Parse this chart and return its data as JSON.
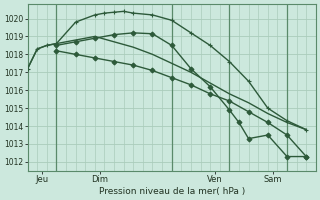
{
  "background_color": "#cce8dd",
  "grid_color": "#aaccbb",
  "line_color": "#2d5a3a",
  "title": "Pression niveau de la mer( hPa )",
  "ylabel_ticks": [
    1012,
    1013,
    1014,
    1015,
    1016,
    1017,
    1018,
    1019,
    1020
  ],
  "ylim": [
    1011.5,
    1020.8
  ],
  "xlim": [
    0,
    30
  ],
  "day_ticks": [
    {
      "x": 1.5,
      "label": "Jeu"
    },
    {
      "x": 7.5,
      "label": "Dim"
    },
    {
      "x": 19.5,
      "label": "Ven"
    },
    {
      "x": 25.5,
      "label": "Sam"
    }
  ],
  "day_lines": [
    3,
    15,
    21,
    27
  ],
  "series": [
    {
      "x": [
        0,
        1,
        2,
        3,
        5,
        7,
        8,
        9,
        10,
        11,
        13,
        15,
        17,
        19,
        21,
        23,
        25,
        27,
        29
      ],
      "y": [
        1017.2,
        1018.3,
        1018.5,
        1018.6,
        1019.8,
        1020.2,
        1020.3,
        1020.35,
        1020.4,
        1020.3,
        1020.2,
        1019.9,
        1019.2,
        1018.5,
        1017.6,
        1016.5,
        1015.0,
        1014.3,
        1013.8
      ],
      "marker": "+",
      "markersize": 3.5
    },
    {
      "x": [
        0,
        1,
        2,
        3,
        5,
        7,
        9,
        11,
        13,
        15,
        17,
        19,
        21,
        23,
        25,
        27,
        29
      ],
      "y": [
        1017.2,
        1018.3,
        1018.5,
        1018.6,
        1018.8,
        1019.0,
        1018.7,
        1018.4,
        1018.0,
        1017.5,
        1017.0,
        1016.4,
        1015.8,
        1015.3,
        1014.7,
        1014.2,
        1013.8
      ],
      "marker": null,
      "markersize": 0
    },
    {
      "x": [
        3,
        5,
        7,
        9,
        11,
        13,
        15,
        17,
        19,
        21,
        22,
        23,
        25,
        27,
        29
      ],
      "y": [
        1018.5,
        1018.7,
        1018.9,
        1019.1,
        1019.2,
        1019.15,
        1018.5,
        1017.2,
        1016.2,
        1014.9,
        1014.2,
        1013.3,
        1013.5,
        1012.3,
        1012.3
      ],
      "marker": "D",
      "markersize": 2.5
    },
    {
      "x": [
        3,
        5,
        7,
        9,
        11,
        13,
        15,
        17,
        19,
        21,
        23,
        25,
        27,
        29
      ],
      "y": [
        1018.2,
        1018.0,
        1017.8,
        1017.6,
        1017.4,
        1017.1,
        1016.7,
        1016.3,
        1015.8,
        1015.4,
        1014.8,
        1014.2,
        1013.5,
        1012.3
      ],
      "marker": "D",
      "markersize": 2.5
    }
  ]
}
